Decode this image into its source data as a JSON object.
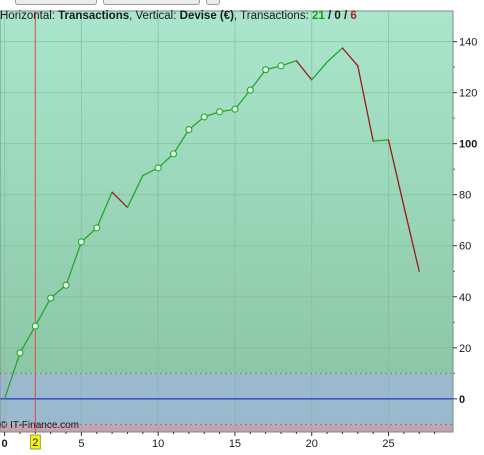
{
  "window": {
    "top_buttons": [
      "",
      "",
      ""
    ]
  },
  "info": {
    "horizontal_label": "Horizontal:",
    "horizontal_value": "Transactions",
    "vertical_label": "Vertical:",
    "vertical_value": "Devise (€)",
    "transactions_label": "Transactions:",
    "tx_wins": "21",
    "tx_zero": "0",
    "tx_losses": "6",
    "sep": "/"
  },
  "watermark": "© IT-Finance.com",
  "colors": {
    "profit_zone_top": "#a9e6cc",
    "profit_zone_bottom": "#8cc7a7",
    "neutral_zone": "#9ab9cc",
    "loss_zone": "#c3a4ae",
    "win_line": "#22a82a",
    "loss_line": "#a01818",
    "zero_line": "#1010c8",
    "marker_line": "#e04848",
    "marker_badge": "#f2f21a"
  },
  "chart_data": {
    "type": "line",
    "title": "",
    "xlabel": "Transactions",
    "ylabel": "Devise (€)",
    "xlim": [
      -0.3,
      29.2
    ],
    "ylim": [
      -13,
      152
    ],
    "x_ticks": [
      0,
      5,
      10,
      15,
      20,
      25
    ],
    "y_ticks": [
      0,
      20,
      40,
      60,
      80,
      100,
      120,
      140
    ],
    "y_tick_bold": [
      0,
      100
    ],
    "marker_x": 2,
    "marker_label": "2",
    "neutral_band": [
      -10,
      10
    ],
    "x": [
      0,
      1,
      2,
      3,
      4,
      5,
      6,
      7,
      8,
      9,
      10,
      11,
      12,
      13,
      14,
      15,
      16,
      17,
      18,
      19,
      20,
      21,
      22,
      23,
      24,
      25,
      26,
      27
    ],
    "equity": [
      0,
      18,
      28.5,
      39.5,
      44.5,
      61.5,
      67,
      81,
      75,
      87.5,
      90.5,
      96,
      105.5,
      110.5,
      112.5,
      113.5,
      121,
      129,
      130.5,
      132.5,
      125,
      132,
      137.5,
      130.5,
      101,
      101.5,
      75.5,
      50
    ],
    "outcome": [
      "start",
      "win",
      "win",
      "win",
      "win",
      "win",
      "win",
      "win",
      "loss",
      "win",
      "win",
      "win",
      "win",
      "win",
      "win",
      "win",
      "win",
      "win",
      "win",
      "win",
      "loss",
      "win",
      "win",
      "loss",
      "loss",
      "win",
      "loss",
      "loss"
    ]
  }
}
